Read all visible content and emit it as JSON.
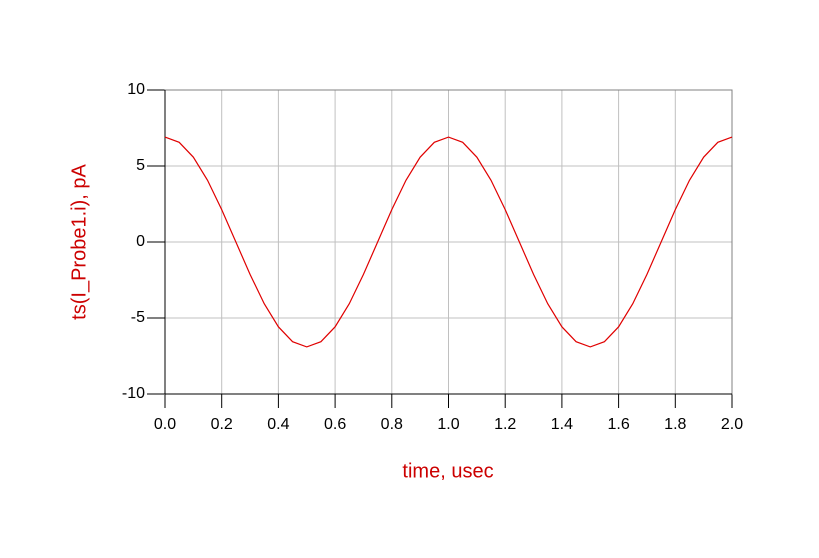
{
  "chart_data": {
    "type": "line",
    "xlabel": "time, usec",
    "ylabel": "ts(I_Probe1.i), pA",
    "x": [
      0,
      0.05,
      0.1,
      0.15,
      0.2,
      0.25,
      0.3,
      0.35,
      0.4,
      0.45,
      0.5,
      0.55,
      0.6,
      0.65,
      0.7,
      0.75,
      0.8,
      0.85,
      0.9,
      0.95,
      1,
      1.05,
      1.1,
      1.15,
      1.2,
      1.25,
      1.3,
      1.35,
      1.4,
      1.45,
      1.5,
      1.55,
      1.6,
      1.65,
      1.7,
      1.75,
      1.8,
      1.85,
      1.9,
      1.95,
      2
    ],
    "series": [
      {
        "color": "#e00000",
        "values": [
          6.9,
          6.56,
          5.58,
          4.06,
          2.13,
          0,
          -2.13,
          -4.06,
          -5.58,
          -6.56,
          -6.9,
          -6.56,
          -5.58,
          -4.06,
          -2.13,
          0,
          2.13,
          4.06,
          5.58,
          6.56,
          6.9,
          6.56,
          5.58,
          4.06,
          2.13,
          0,
          -2.13,
          -4.06,
          -5.58,
          -6.56,
          -6.9,
          -6.56,
          -5.58,
          -4.06,
          -2.13,
          0,
          2.13,
          4.06,
          5.58,
          6.56,
          6.9
        ]
      }
    ],
    "xlim": [
      0,
      2
    ],
    "ylim": [
      -10,
      10
    ],
    "xticks": [
      {
        "value": 0,
        "label": "0.0"
      },
      0.2,
      0.4,
      0.6,
      0.8,
      {
        "value": 1,
        "label": "1.0"
      },
      1.2,
      1.4,
      1.6,
      1.8,
      {
        "value": 2,
        "label": "2.0"
      }
    ],
    "yticks": [
      10,
      5,
      0,
      -5,
      -10
    ],
    "grid": true
  }
}
